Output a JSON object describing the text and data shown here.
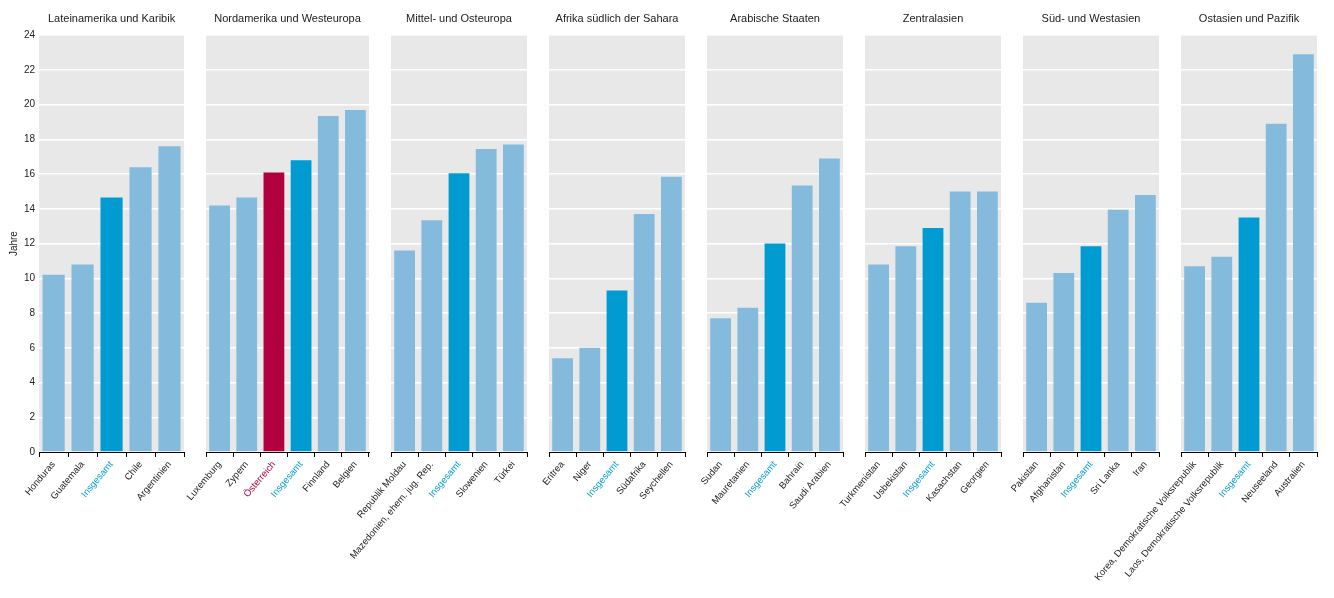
{
  "chart_data": [
    {
      "type": "bar",
      "title": "Lateinamerika und Karibik",
      "ylabel": "Jahre",
      "categories": [
        "Honduras",
        "Guatemala",
        "Insgesamt",
        "Chile",
        "Argentinien"
      ],
      "values": [
        10.2,
        10.8,
        14.65,
        16.4,
        17.6
      ],
      "color": "#84bbdc",
      "colors": [
        "#84bbdc",
        "#84bbdc",
        "#009cd1",
        "#84bbdc",
        "#84bbdc"
      ],
      "ylim": [
        0,
        24
      ],
      "yticks": [
        0,
        2,
        4,
        6,
        8,
        10,
        12,
        14,
        16,
        18,
        20,
        22,
        24
      ],
      "grid": "y"
    },
    {
      "type": "bar",
      "title": "Nordamerika und Westeuropa",
      "categories": [
        "Luxemburg",
        "Zypern",
        "Österreich",
        "Insgesamt",
        "Finnland",
        "Belgien"
      ],
      "values": [
        14.2,
        14.65,
        16.1,
        16.8,
        19.35,
        19.7
      ],
      "color": "#84bbdc",
      "colors": [
        "#84bbdc",
        "#84bbdc",
        "#b0003e",
        "#009cd1",
        "#84bbdc",
        "#84bbdc"
      ],
      "ylim": [
        0,
        24
      ],
      "yticks": [
        0,
        2,
        4,
        6,
        8,
        10,
        12,
        14,
        16,
        18,
        20,
        22,
        24
      ],
      "grid": "y",
      "tick_labels": "x"
    },
    {
      "type": "bar",
      "title": "Mittel- und Osteuropa",
      "categories": [
        "Republik Moldau",
        "Mazedonien, ehem. jug. Rep.",
        "Insgesamt",
        "Slowenien",
        "Türkei"
      ],
      "values": [
        11.6,
        13.35,
        16.05,
        17.45,
        17.7
      ],
      "color": "#84bbdc",
      "colors": [
        "#84bbdc",
        "#84bbdc",
        "#009cd1",
        "#84bbdc",
        "#84bbdc"
      ],
      "ylim": [
        0,
        24
      ],
      "yticks": [
        0,
        2,
        4,
        6,
        8,
        10,
        12,
        14,
        16,
        18,
        20,
        22,
        24
      ],
      "grid": "y",
      "tick_labels": "x"
    },
    {
      "type": "bar",
      "title": "Afrika südlich der Sahara",
      "categories": [
        "Eritrea",
        "Niger",
        "Insgesamt",
        "Südafrika",
        "Seychellen"
      ],
      "values": [
        5.4,
        6.0,
        9.3,
        13.7,
        15.85
      ],
      "color": "#84bbdc",
      "colors": [
        "#84bbdc",
        "#84bbdc",
        "#009cd1",
        "#84bbdc",
        "#84bbdc"
      ],
      "ylim": [
        0,
        24
      ],
      "yticks": [
        0,
        2,
        4,
        6,
        8,
        10,
        12,
        14,
        16,
        18,
        20,
        22,
        24
      ],
      "grid": "y",
      "tick_labels": "x"
    },
    {
      "type": "bar",
      "title": "Arabische Staaten",
      "categories": [
        "Sudan",
        "Mauretanien",
        "Insgesamt",
        "Bahrain",
        "Saudi Arabien"
      ],
      "values": [
        7.7,
        8.3,
        12.0,
        15.35,
        16.9
      ],
      "color": "#84bbdc",
      "colors": [
        "#84bbdc",
        "#84bbdc",
        "#009cd1",
        "#84bbdc",
        "#84bbdc"
      ],
      "ylim": [
        0,
        24
      ],
      "yticks": [
        0,
        2,
        4,
        6,
        8,
        10,
        12,
        14,
        16,
        18,
        20,
        22,
        24
      ],
      "grid": "y",
      "tick_labels": "x"
    },
    {
      "type": "bar",
      "title": "Zentralasien",
      "categories": [
        "Turkmenistan",
        "Usbekistan",
        "Insgesamt",
        "Kasachstan",
        "Georgien"
      ],
      "values": [
        10.8,
        11.85,
        12.9,
        15.0,
        15.0
      ],
      "color": "#84bbdc",
      "colors": [
        "#84bbdc",
        "#84bbdc",
        "#009cd1",
        "#84bbdc",
        "#84bbdc"
      ],
      "ylim": [
        0,
        24
      ],
      "yticks": [
        0,
        2,
        4,
        6,
        8,
        10,
        12,
        14,
        16,
        18,
        20,
        22,
        24
      ],
      "grid": "y",
      "tick_labels": "x"
    },
    {
      "type": "bar",
      "title": "Süd- und Westasien",
      "categories": [
        "Pakistan",
        "Afghanistan",
        "Insgesamt",
        "Sri Lanka",
        "Iran"
      ],
      "values": [
        8.6,
        10.3,
        11.85,
        13.95,
        14.8
      ],
      "color": "#84bbdc",
      "colors": [
        "#84bbdc",
        "#84bbdc",
        "#009cd1",
        "#84bbdc",
        "#84bbdc"
      ],
      "ylim": [
        0,
        24
      ],
      "yticks": [
        0,
        2,
        4,
        6,
        8,
        10,
        12,
        14,
        16,
        18,
        20,
        22,
        24
      ],
      "grid": "y",
      "tick_labels": "x"
    },
    {
      "type": "bar",
      "title": "Ostasien und Pazifik",
      "categories": [
        "Korea, Demokratische Volksrepublik",
        "Laos, Demokratische Volksrepublik",
        "Insgesamt",
        "Neuseeland",
        "Australien"
      ],
      "values": [
        10.7,
        11.25,
        13.5,
        18.9,
        22.9
      ],
      "color": "#84bbdc",
      "colors": [
        "#84bbdc",
        "#84bbdc",
        "#009cd1",
        "#84bbdc",
        "#84bbdc"
      ],
      "ylim": [
        0,
        24
      ],
      "yticks": [
        0,
        2,
        4,
        6,
        8,
        10,
        12,
        14,
        16,
        18,
        20,
        22,
        24
      ],
      "grid": "y",
      "tick_labels": "x"
    }
  ]
}
